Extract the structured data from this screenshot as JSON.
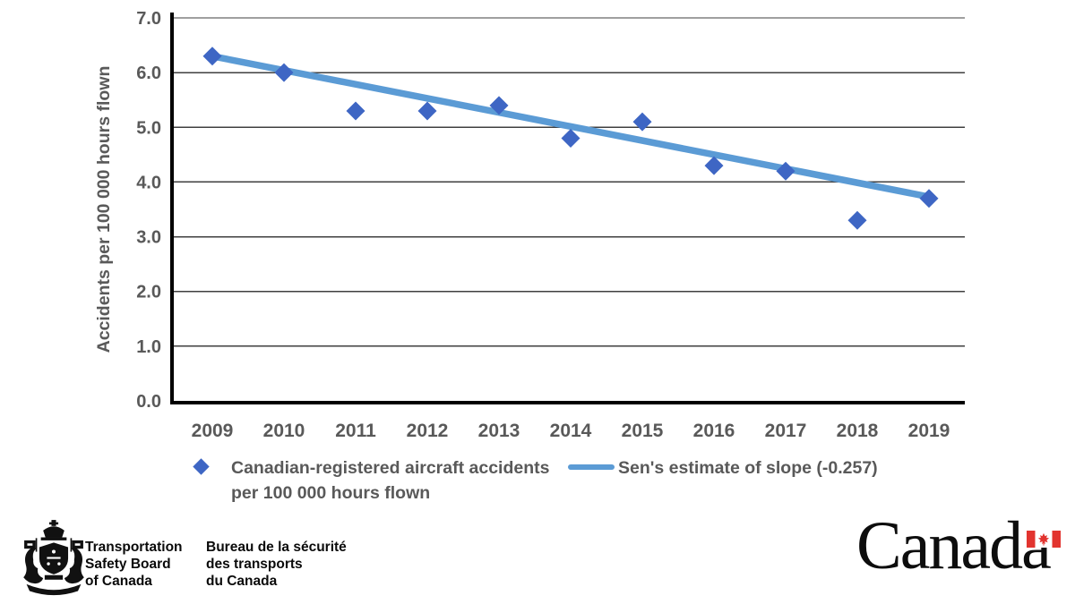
{
  "chart_data": {
    "type": "scatter",
    "title": "",
    "x": [
      2009,
      2010,
      2011,
      2012,
      2013,
      2014,
      2015,
      2016,
      2017,
      2018,
      2019
    ],
    "x_labels": [
      "2009",
      "2010",
      "2011",
      "2012",
      "2013",
      "2014",
      "2015",
      "2016",
      "2017",
      "2018",
      "2019"
    ],
    "series": [
      {
        "name": "Canadian-registered aircraft accidents per 100 000 hours flown",
        "kind": "scatter",
        "marker": "diamond",
        "color": "#3E66C4",
        "values": [
          6.3,
          6.0,
          5.3,
          5.3,
          5.4,
          4.8,
          5.1,
          4.3,
          4.2,
          3.3,
          3.7
        ]
      },
      {
        "name": "Sen's estimate of slope (-0.257)",
        "kind": "line",
        "color": "#5B9BD5",
        "slope_per_year": -0.257,
        "x": [
          2009,
          2019
        ],
        "values": [
          6.3,
          3.73
        ]
      }
    ],
    "xlabel": "",
    "ylabel": "Accidents per 100 000 hours flown",
    "ylim": [
      0,
      7.0
    ],
    "ytick_labels": [
      "0.0",
      "1.0",
      "2.0",
      "3.0",
      "4.0",
      "5.0",
      "6.0",
      "7.0"
    ],
    "grid": true,
    "legend_position": "bottom"
  },
  "legend": {
    "series1_line1": "Canadian-registered aircraft accidents",
    "series1_line2": "per 100 000 hours flown",
    "series2_label": "Sen's estimate of slope (-0.257)"
  },
  "footer": {
    "tsb_en_line1": "Transportation",
    "tsb_en_line2": "Safety Board",
    "tsb_en_line3": "of Canada",
    "tsb_fr_line1": "Bureau de la sécurité",
    "tsb_fr_line2": "des transports",
    "tsb_fr_line3": "du Canada",
    "wordmark": "Canada"
  },
  "colors": {
    "marker_blue": "#3E66C4",
    "trend_blue": "#5B9BD5",
    "gridline": "#3F3F3F",
    "axis": "#000000",
    "tick_text": "#595959",
    "flag_red": "#E2342F"
  }
}
